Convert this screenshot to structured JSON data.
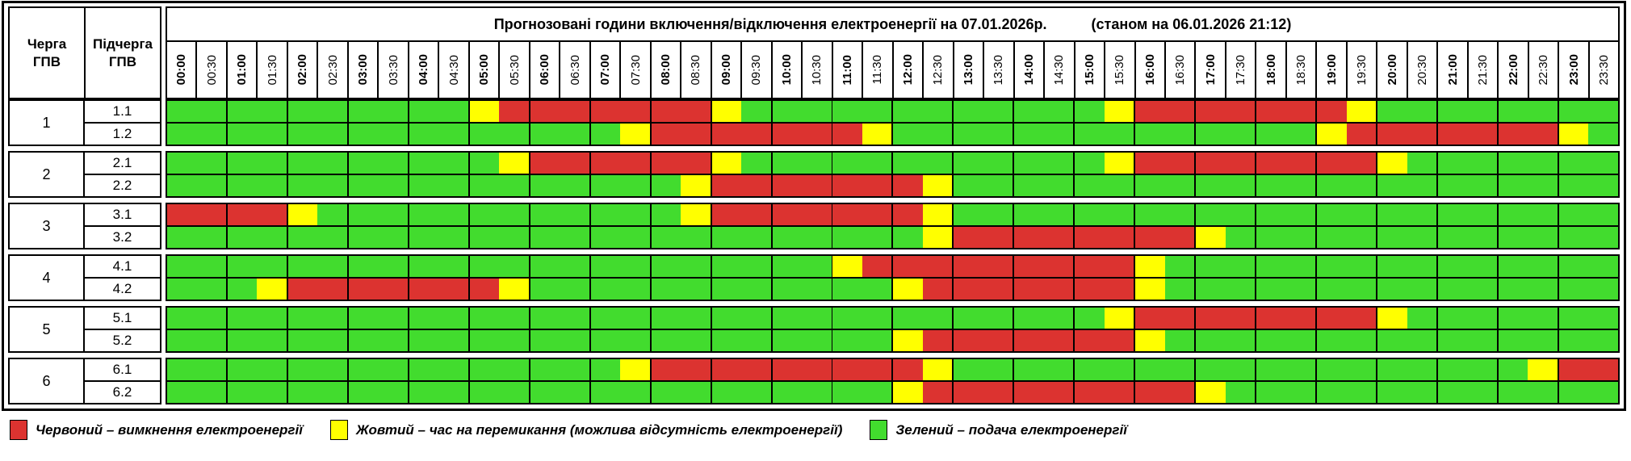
{
  "title": {
    "main": "Прогнозовані години включення/відключення електроенергії на 07.01.2026р.",
    "note": "(станом на 06.01.2026 21:12)"
  },
  "columns": {
    "queue": "Черга ГПВ",
    "subqueue": "Підчерга ГПВ"
  },
  "colors": {
    "G": "#42DC2E",
    "Y": "#FFFF00",
    "R": "#DC3330",
    "grid": "#000000"
  },
  "legend": [
    {
      "key": "R",
      "color": "#DC3330",
      "label": "Червоний – вимкнення електроенергії"
    },
    {
      "key": "Y",
      "color": "#FFFF00",
      "label": "Жовтий – час на перемикання (можлива відсутність електроенергії)"
    },
    {
      "key": "G",
      "color": "#42DC2E",
      "label": "Зелений – подача електроенергії"
    }
  ],
  "chart_data": {
    "type": "heatmap",
    "title": "Прогнозовані години включення/відключення електроенергії на 07.01.2026р. (станом на 06.01.2026 21:12)",
    "x": [
      "00:00",
      "00:30",
      "01:00",
      "01:30",
      "02:00",
      "02:30",
      "03:00",
      "03:30",
      "04:00",
      "04:30",
      "05:00",
      "05:30",
      "06:00",
      "06:30",
      "07:00",
      "07:30",
      "08:00",
      "08:30",
      "09:00",
      "09:30",
      "10:00",
      "10:30",
      "11:00",
      "11:30",
      "12:00",
      "12:30",
      "13:00",
      "13:30",
      "14:00",
      "14:30",
      "15:00",
      "15:30",
      "16:00",
      "16:30",
      "17:00",
      "17:30",
      "18:00",
      "18:30",
      "19:00",
      "19:30",
      "20:00",
      "20:30",
      "21:00",
      "21:30",
      "22:00",
      "22:30",
      "23:00",
      "23:30"
    ],
    "state_meaning": {
      "G": "подача електроенергії",
      "Y": "час на перемикання (можлива відсутність електроенергії)",
      "R": "вимкнення електроенергії"
    },
    "groups": [
      {
        "queue": "1",
        "rows": [
          {
            "subqueue": "1.1",
            "states": "GGGGGGGGGGYRRRRRRRYGGGGGGGGGGGGYRRRRRRRYGGGGGGGG"
          },
          {
            "subqueue": "1.2",
            "states": "GGGGGGGGGGGGGGGYRRRRRRRYGGGGGGGGGGGGGGYRRRRRRRYG"
          }
        ]
      },
      {
        "queue": "2",
        "rows": [
          {
            "subqueue": "2.1",
            "states": "GGGGGGGGGGGYRRRRRRYGGGGGGGGGGGGYRRRRRRRRYGGGGGGG"
          },
          {
            "subqueue": "2.2",
            "states": "GGGGGGGGGGGGGGGGGYRRRRRRRYGGGGGGGGGGGGGGGGGGGGGG"
          }
        ]
      },
      {
        "queue": "3",
        "rows": [
          {
            "subqueue": "3.1",
            "states": "RRRRYGGGGGGGGGGGGYRRRRRRRYGGGGGGGGGGGGGGGGGGGGGG"
          },
          {
            "subqueue": "3.2",
            "states": "GGGGGGGGGGGGGGGGGGGGGGGGGYRRRRRRRRYGGGGGGGGGGGGG"
          }
        ]
      },
      {
        "queue": "4",
        "rows": [
          {
            "subqueue": "4.1",
            "states": "GGGGGGGGGGGGGGGGGGGGGGYRRRRRRRRRYGGGGGGGGGGGGGGG"
          },
          {
            "subqueue": "4.2",
            "states": "GGGYRRRRRRRYGGGGGGGGGGGGYRRRRRRRYGGGGGGGGGGGGGGG"
          }
        ]
      },
      {
        "queue": "5",
        "rows": [
          {
            "subqueue": "5.1",
            "states": "GGGGGGGGGGGGGGGGGGGGGGGGGGGGGGGYRRRRRRRRYGGGGGGG"
          },
          {
            "subqueue": "5.2",
            "states": "GGGGGGGGGGGGGGGGGGGGGGGGYRRRRRRRYGGGGGGGGGGGGGGG"
          }
        ]
      },
      {
        "queue": "6",
        "rows": [
          {
            "subqueue": "6.1",
            "states": "GGGGGGGGGGGGGGGYRRRRRRRRRYGGGGGGGGGGGGGGGGGGGYRR"
          },
          {
            "subqueue": "6.2",
            "states": "GGGGGGGGGGGGGGGGGGGGGGGGYRRRRRRRRRYGGGGGGGGGGGGG"
          }
        ]
      }
    ]
  }
}
